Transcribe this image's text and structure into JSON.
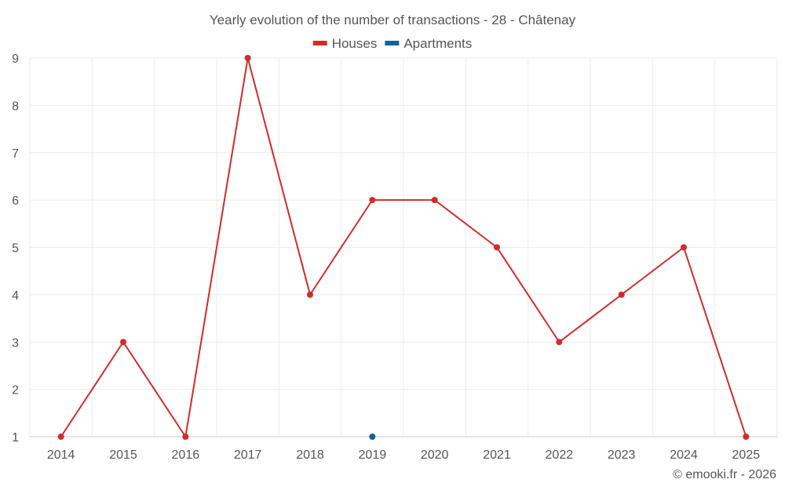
{
  "chart_data": {
    "type": "line",
    "title": "Yearly evolution of the number of transactions - 28 - Châtenay",
    "categories": [
      "2014",
      "2015",
      "2016",
      "2017",
      "2018",
      "2019",
      "2020",
      "2021",
      "2022",
      "2023",
      "2024",
      "2025"
    ],
    "series": [
      {
        "name": "Houses",
        "color": "#d32a2a",
        "values": [
          1,
          3,
          1,
          9,
          4,
          6,
          6,
          5,
          3,
          4,
          5,
          1
        ]
      },
      {
        "name": "Apartments",
        "color": "#0e6496",
        "values": [
          null,
          null,
          null,
          null,
          null,
          1,
          null,
          null,
          null,
          null,
          null,
          null
        ]
      }
    ],
    "ylim": [
      1,
      9
    ],
    "yticks": [
      1,
      2,
      3,
      4,
      5,
      6,
      7,
      8,
      9
    ],
    "xlabel": "",
    "ylabel": "",
    "grid": true,
    "legend_position": "top-center"
  },
  "credit": "© emooki.fr - 2026"
}
